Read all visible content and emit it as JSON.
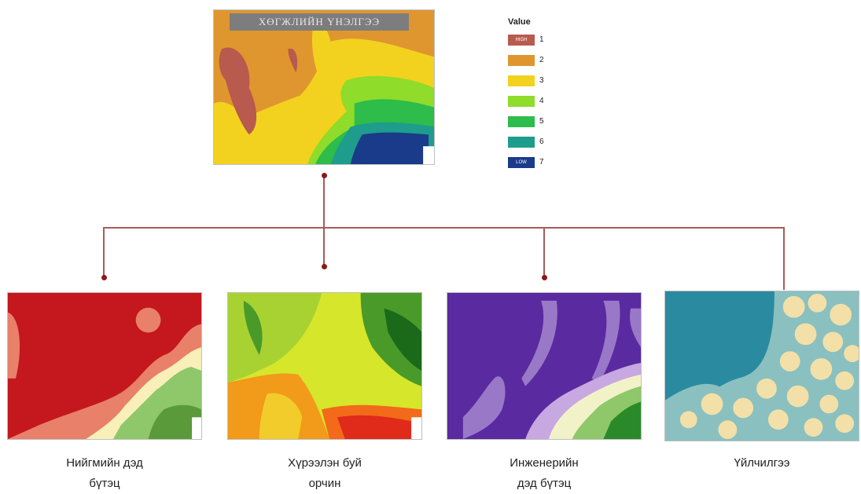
{
  "main_map": {
    "title": "ХӨГЖЛИЙН ҮНЭЛГЭЭ"
  },
  "legend": {
    "title": "Value",
    "items": [
      {
        "value": "1",
        "color": "#b85a4e",
        "swatch_text": "HIGH"
      },
      {
        "value": "2",
        "color": "#e0962e",
        "swatch_text": ""
      },
      {
        "value": "3",
        "color": "#f2d21e",
        "swatch_text": ""
      },
      {
        "value": "4",
        "color": "#8fdc2a",
        "swatch_text": ""
      },
      {
        "value": "5",
        "color": "#2ebc4a",
        "swatch_text": ""
      },
      {
        "value": "6",
        "color": "#1e9c8c",
        "swatch_text": ""
      },
      {
        "value": "7",
        "color": "#1a3a8a",
        "swatch_text": "LOW"
      }
    ]
  },
  "sub_maps": [
    {
      "caption_line1": "Нийгмийн дэд",
      "caption_line2": "бүтэц"
    },
    {
      "caption_line1": "Хүрээлэн буй",
      "caption_line2": "орчин"
    },
    {
      "caption_line1": "Инженерийн",
      "caption_line2": "дэд бүтэц"
    },
    {
      "caption_line1": "Үйлчилгээ",
      "caption_line2": ""
    }
  ]
}
